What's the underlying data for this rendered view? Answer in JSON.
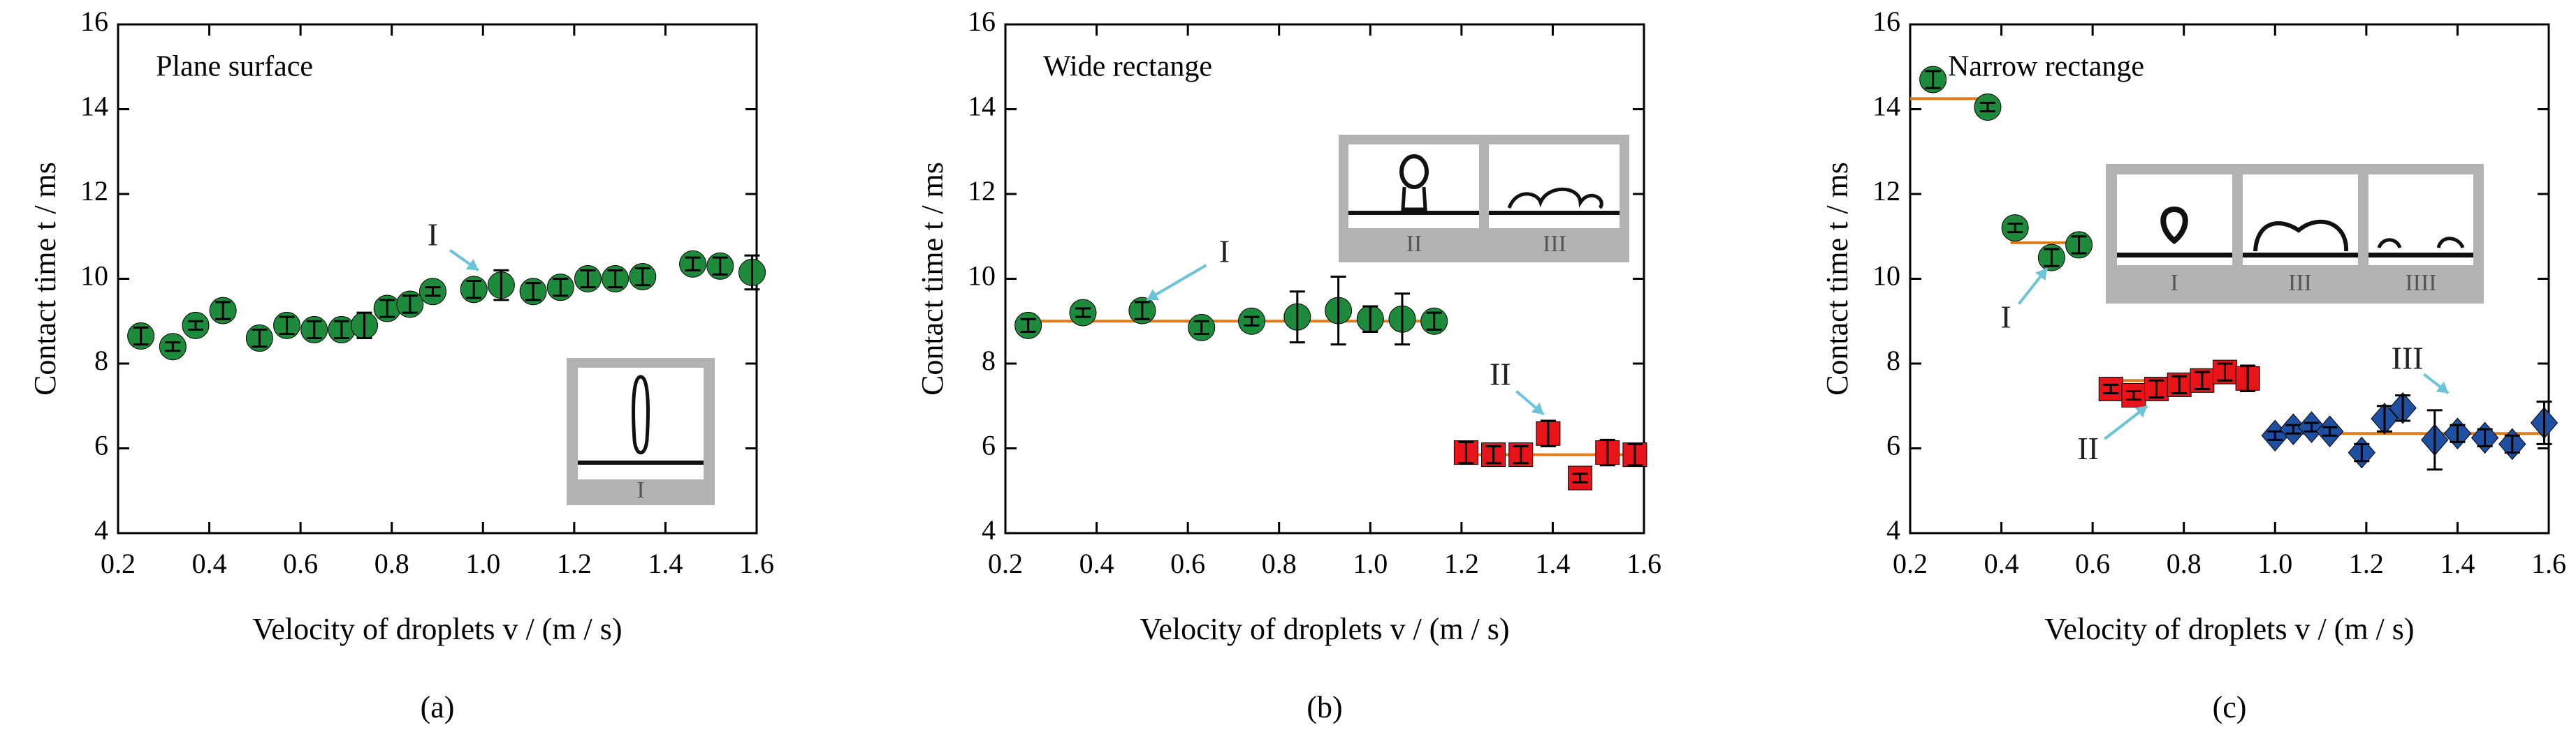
{
  "chart_data": [
    {
      "type": "scatter",
      "title": "Plane surface",
      "caption": "(a)",
      "x_label": "Velocity of droplets v / (m / s)",
      "y_label": "Contact time t / ms",
      "xlim": [
        0.2,
        1.6
      ],
      "xticks": [
        0.2,
        0.4,
        0.6,
        0.8,
        {
          "value": 1,
          "label": "1.0"
        },
        1.2,
        1.4,
        1.6
      ],
      "ylim": [
        4,
        16
      ],
      "yticks": [
        4,
        6,
        8,
        10,
        12,
        14,
        16
      ],
      "series": [
        {
          "color": "#1e8a3c",
          "marker": "circle",
          "x": [
            0.25,
            0.32,
            0.37,
            0.43,
            0.51,
            0.57,
            0.63,
            0.69,
            0.74,
            0.79,
            0.84,
            0.89,
            0.98,
            1.04,
            1.11,
            1.17,
            1.23,
            1.29,
            1.35,
            1.46,
            1.52,
            1.59
          ],
          "values": [
            8.65,
            8.4,
            8.9,
            9.25,
            8.6,
            8.9,
            8.8,
            8.8,
            8.9,
            9.3,
            9.4,
            9.7,
            9.75,
            9.85,
            9.7,
            9.8,
            10.0,
            10.0,
            10.05,
            10.35,
            10.3,
            10.15
          ],
          "errors": [
            0.2,
            0.1,
            0.1,
            0.2,
            0.2,
            0.2,
            0.2,
            0.2,
            0.3,
            0.2,
            0.2,
            0.1,
            0.2,
            0.35,
            0.2,
            0.2,
            0.2,
            0.2,
            0.2,
            0.15,
            0.2,
            0.4
          ]
        }
      ],
      "fit_lines": [],
      "annotations": [
        {
          "text": "I",
          "x": 0.89,
          "y": 10.96,
          "arrow_x": 0.99,
          "arrow_y": 10.2
        }
      ],
      "inset_labels": [
        "I"
      ]
    },
    {
      "type": "scatter",
      "title": "Wide rectange",
      "caption": "(b)",
      "x_label": "Velocity of droplets v / (m / s)",
      "y_label": "Contact time t / ms",
      "xlim": [
        0.2,
        1.6
      ],
      "xticks": [
        0.2,
        0.4,
        0.6,
        0.8,
        {
          "value": 1,
          "label": "1.0"
        },
        1.2,
        1.4,
        1.6
      ],
      "ylim": [
        4,
        16
      ],
      "yticks": [
        4,
        6,
        8,
        10,
        12,
        14,
        16
      ],
      "series": [
        {
          "color": "#1e8a3c",
          "marker": "circle",
          "x": [
            0.25,
            0.37,
            0.5,
            0.63,
            0.74,
            0.84,
            0.93,
            1.0,
            1.07,
            1.14
          ],
          "values": [
            8.9,
            9.2,
            9.25,
            8.85,
            9.0,
            9.1,
            9.25,
            9.05,
            9.05,
            9.0
          ],
          "errors": [
            0.15,
            0.1,
            0.2,
            0.15,
            0.1,
            0.6,
            0.8,
            0.3,
            0.6,
            0.2
          ]
        },
        {
          "color": "#e8141a",
          "marker": "square",
          "x": [
            1.21,
            1.27,
            1.33,
            1.39,
            1.46,
            1.52,
            1.58
          ],
          "values": [
            5.9,
            5.85,
            5.85,
            6.35,
            5.3,
            5.9,
            5.85
          ],
          "errors": [
            0.25,
            0.2,
            0.2,
            0.3,
            0.1,
            0.3,
            0.25
          ]
        }
      ],
      "fit_lines": [
        {
          "x": [
            0.25,
            1.15
          ],
          "y": 9.0,
          "color": "#e07b1a"
        },
        {
          "x": [
            1.19,
            1.6
          ],
          "y": 5.85,
          "color": "#e07b1a"
        }
      ],
      "annotations": [
        {
          "text": "I",
          "x": 0.68,
          "y": 10.57,
          "arrow_x": 0.51,
          "arrow_y": 9.5
        },
        {
          "text": "II",
          "x": 1.285,
          "y": 7.67,
          "arrow_x": 1.38,
          "arrow_y": 6.8
        }
      ],
      "inset_labels": [
        "II",
        "III"
      ]
    },
    {
      "type": "scatter",
      "title": "Narrow rectange",
      "caption": "(c)",
      "x_label": "Velocity of droplets v / (m / s)",
      "y_label": "Contact time t / ms",
      "xlim": [
        0.2,
        1.6
      ],
      "xticks": [
        0.2,
        0.4,
        0.6,
        0.8,
        {
          "value": 1,
          "label": "1.0"
        },
        1.2,
        1.4,
        1.6
      ],
      "ylim": [
        4,
        16
      ],
      "yticks": [
        4,
        6,
        8,
        10,
        12,
        14,
        16
      ],
      "series": [
        {
          "color": "#1e8a3c",
          "marker": "circle",
          "x": [
            0.25,
            0.37,
            0.43,
            0.51,
            0.57
          ],
          "values": [
            14.7,
            14.05,
            11.2,
            10.5,
            10.8
          ],
          "errors": [
            0.2,
            0.1,
            0.1,
            0.2,
            0.2
          ]
        },
        {
          "color": "#e8141a",
          "marker": "square",
          "x": [
            0.64,
            0.69,
            0.74,
            0.79,
            0.84,
            0.89,
            0.94
          ],
          "values": [
            7.4,
            7.25,
            7.4,
            7.5,
            7.6,
            7.8,
            7.65
          ],
          "errors": [
            0.1,
            0.1,
            0.2,
            0.2,
            0.2,
            0.2,
            0.3
          ]
        },
        {
          "color": "#1f4fa0",
          "marker": "diamond",
          "x": [
            1.0,
            1.04,
            1.08,
            1.12,
            1.19,
            1.24,
            1.28,
            1.35,
            1.4,
            1.46,
            1.52,
            1.59
          ],
          "values": [
            6.3,
            6.45,
            6.5,
            6.4,
            5.9,
            6.7,
            6.95,
            6.2,
            6.35,
            6.25,
            6.1,
            6.6
          ],
          "errors": [
            0.1,
            0.1,
            0.1,
            0.1,
            0.2,
            0.3,
            0.3,
            0.7,
            0.2,
            0.2,
            0.2,
            0.5
          ]
        }
      ],
      "fit_lines": [
        {
          "x": [
            0.2,
            0.38
          ],
          "y": 14.25,
          "color": "#e07b1a"
        },
        {
          "x": [
            0.42,
            0.58
          ],
          "y": 10.85,
          "color": "#e07b1a"
        },
        {
          "x": [
            0.62,
            0.95
          ],
          "y": 7.6,
          "color": "#e07b1a"
        },
        {
          "x": [
            1.0,
            1.6
          ],
          "y": 6.35,
          "color": "#e07b1a"
        }
      ],
      "annotations": [
        {
          "text": "I",
          "x": 0.41,
          "y": 9.02,
          "arrow_x": 0.5,
          "arrow_y": 10.25
        },
        {
          "text": "II",
          "x": 0.59,
          "y": 5.92,
          "arrow_x": 0.72,
          "arrow_y": 7.0
        },
        {
          "text": "III",
          "x": 1.29,
          "y": 8.05,
          "arrow_x": 1.38,
          "arrow_y": 7.3
        }
      ],
      "inset_labels": [
        "I",
        "III",
        "IIII"
      ]
    }
  ]
}
